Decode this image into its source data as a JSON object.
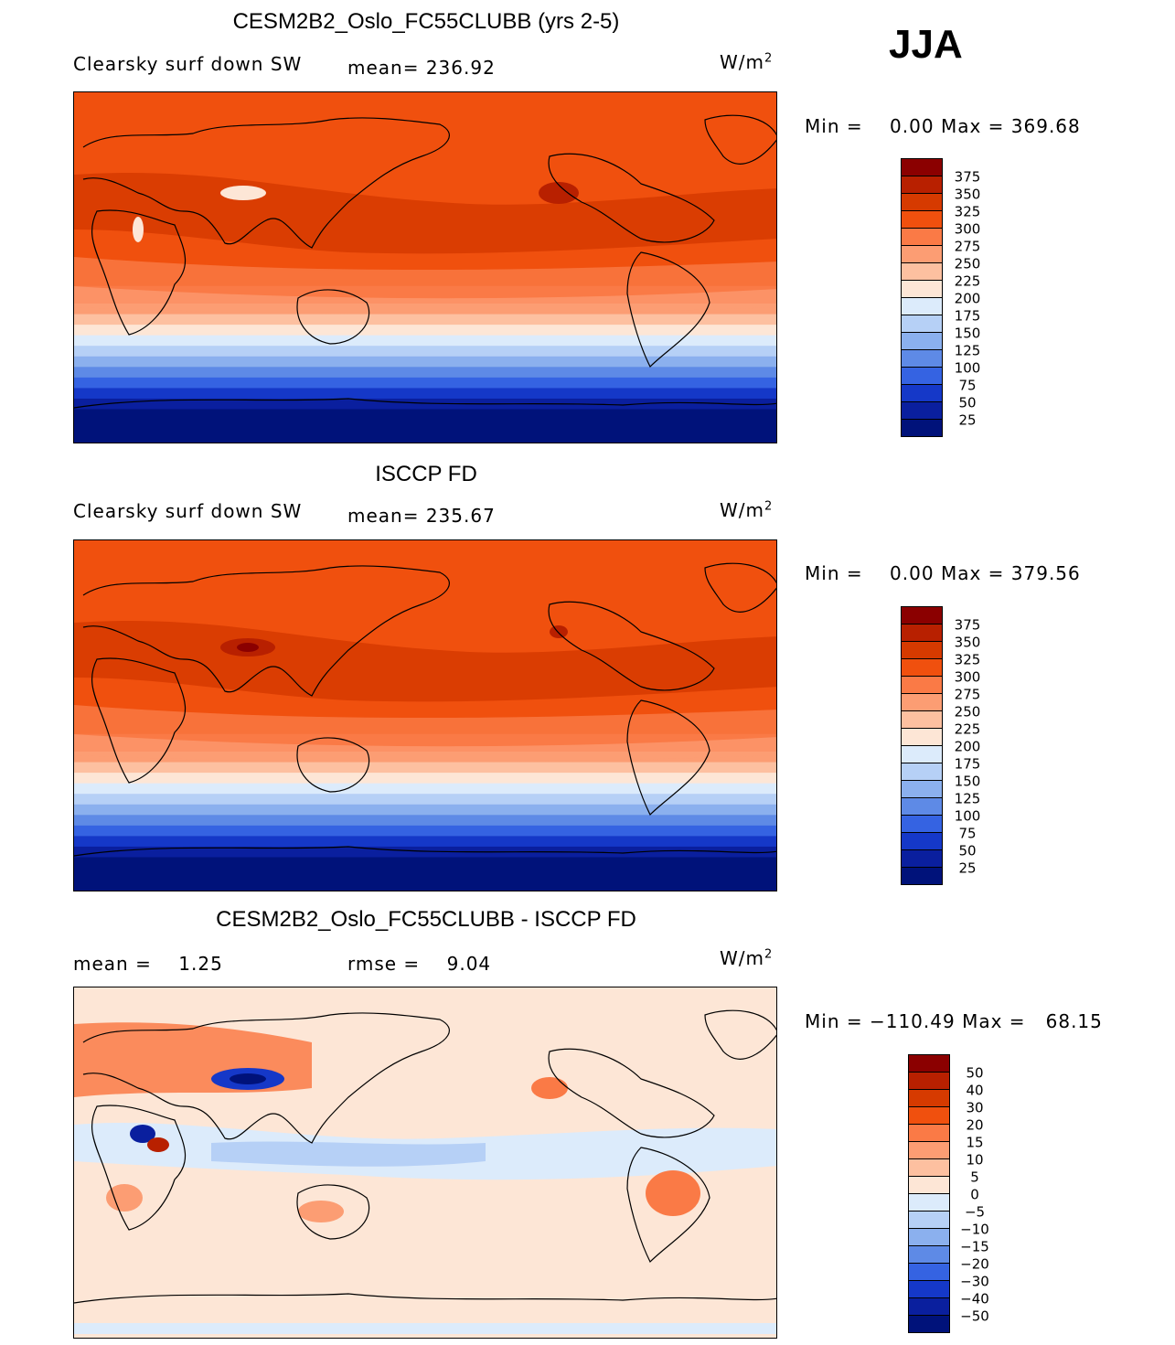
{
  "season": "JJA",
  "units": {
    "base": "W/m",
    "exp": "2"
  },
  "panels": [
    {
      "title": "CESM2B2_Oslo_FC55CLUBB (yrs 2-5)",
      "left_stat": "Clearsky surf down SW",
      "right_stat": "mean= 236.92",
      "min_label": "Min =",
      "min_value": "0.00",
      "max_label": "Max =",
      "max_value": "369.68",
      "colorbar": {
        "levels": [
          "375",
          "350",
          "325",
          "300",
          "275",
          "250",
          "225",
          "200",
          "175",
          "150",
          "125",
          "100",
          "75",
          "50",
          "25"
        ],
        "colors": [
          "#8b0000",
          "#b82000",
          "#d63a00",
          "#f0500e",
          "#fa7a46",
          "#fc9d73",
          "#fdc0a0",
          "#fde6d6",
          "#dcebfb",
          "#b6d0f6",
          "#8bb0ee",
          "#5e8ae6",
          "#3563e2",
          "#1538c8",
          "#0a1f9e",
          "#00127a"
        ]
      },
      "map_field": "model"
    },
    {
      "title": "ISCCP FD",
      "left_stat": "Clearsky surf down SW",
      "right_stat": "mean= 235.67",
      "min_label": "Min =",
      "min_value": "0.00",
      "max_label": "Max =",
      "max_value": "379.56",
      "colorbar": {
        "levels": [
          "375",
          "350",
          "325",
          "300",
          "275",
          "250",
          "225",
          "200",
          "175",
          "150",
          "125",
          "100",
          "75",
          "50",
          "25"
        ],
        "colors": [
          "#8b0000",
          "#b82000",
          "#d63a00",
          "#f0500e",
          "#fa7a46",
          "#fc9d73",
          "#fdc0a0",
          "#fde6d6",
          "#dcebfb",
          "#b6d0f6",
          "#8bb0ee",
          "#5e8ae6",
          "#3563e2",
          "#1538c8",
          "#0a1f9e",
          "#00127a"
        ]
      },
      "map_field": "obs"
    },
    {
      "title": "CESM2B2_Oslo_FC55CLUBB - ISCCP FD",
      "left_stat": "mean =    1.25",
      "right_stat": "rmse =    9.04",
      "min_label": "Min =",
      "min_value": "−110.49",
      "max_label": "Max =",
      "max_value": "68.15",
      "colorbar": {
        "levels": [
          "50",
          "40",
          "30",
          "20",
          "15",
          "10",
          "5",
          "0",
          "−5",
          "−10",
          "−15",
          "−20",
          "−30",
          "−40",
          "−50"
        ],
        "colors": [
          "#8b0000",
          "#b82000",
          "#d63a00",
          "#f0500e",
          "#fa7a46",
          "#fc9d73",
          "#fdc0a0",
          "#fde6d6",
          "#dcebfb",
          "#b6d0f6",
          "#8bb0ee",
          "#5e8ae6",
          "#3563e2",
          "#1538c8",
          "#0a1f9e",
          "#00127a"
        ]
      },
      "map_field": "diff"
    }
  ]
}
